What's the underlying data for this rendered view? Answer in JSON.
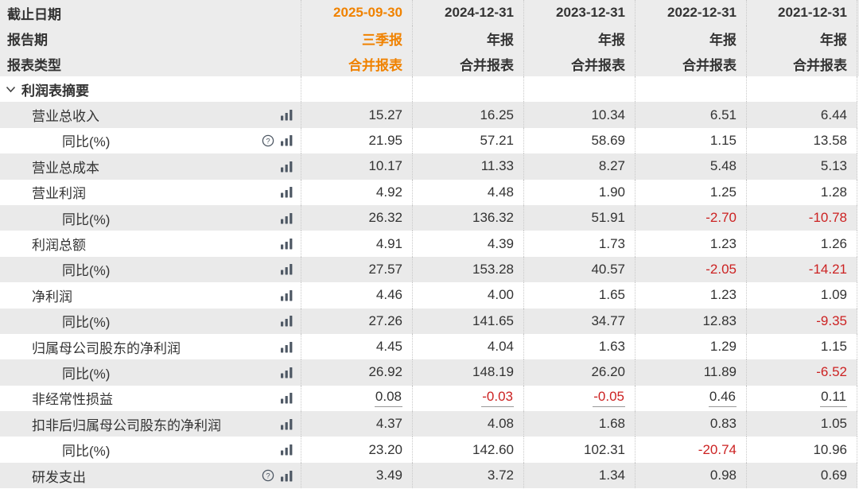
{
  "colors": {
    "accent_orange": "#f08200",
    "negative_red": "#cc2222",
    "shaded_row": "#eaeaea",
    "header_bg": "#ececec",
    "text": "#333333",
    "icon": "#4e5864",
    "underline": "#999999",
    "column_divider": "#c9c9c9"
  },
  "header": {
    "rows": [
      {
        "label": "截止日期",
        "values": [
          "2025-09-30",
          "2024-12-31",
          "2023-12-31",
          "2022-12-31",
          "2021-12-31"
        ]
      },
      {
        "label": "报告期",
        "values": [
          "三季报",
          "年报",
          "年报",
          "年报",
          "年报"
        ]
      },
      {
        "label": "报表类型",
        "values": [
          "合并报表",
          "合并报表",
          "合并报表",
          "合并报表",
          "合并报表"
        ]
      }
    ]
  },
  "section": {
    "title": "利润表摘要",
    "chevron_icon": "chevron-down"
  },
  "table": {
    "rows": [
      {
        "label": "营业总收入",
        "indent": 1,
        "icons": [
          "bar-chart-icon"
        ],
        "values": [
          "15.27",
          "16.25",
          "10.34",
          "6.51",
          "6.44"
        ]
      },
      {
        "label": "同比(%)",
        "indent": 2,
        "icons": [
          "question-icon",
          "bar-chart-icon"
        ],
        "values": [
          "21.95",
          "57.21",
          "58.69",
          "1.15",
          "13.58"
        ]
      },
      {
        "label": "营业总成本",
        "indent": 1,
        "icons": [
          "bar-chart-icon"
        ],
        "values": [
          "10.17",
          "11.33",
          "8.27",
          "5.48",
          "5.13"
        ]
      },
      {
        "label": "营业利润",
        "indent": 1,
        "icons": [
          "bar-chart-icon"
        ],
        "values": [
          "4.92",
          "4.48",
          "1.90",
          "1.25",
          "1.28"
        ]
      },
      {
        "label": "同比(%)",
        "indent": 2,
        "icons": [
          "bar-chart-icon"
        ],
        "values": [
          "26.32",
          "136.32",
          "51.91",
          "-2.70",
          "-10.78"
        ]
      },
      {
        "label": "利润总额",
        "indent": 1,
        "icons": [
          "bar-chart-icon"
        ],
        "values": [
          "4.91",
          "4.39",
          "1.73",
          "1.23",
          "1.26"
        ]
      },
      {
        "label": "同比(%)",
        "indent": 2,
        "icons": [
          "bar-chart-icon"
        ],
        "values": [
          "27.57",
          "153.28",
          "40.57",
          "-2.05",
          "-14.21"
        ]
      },
      {
        "label": "净利润",
        "indent": 1,
        "icons": [
          "bar-chart-icon"
        ],
        "values": [
          "4.46",
          "4.00",
          "1.65",
          "1.23",
          "1.09"
        ]
      },
      {
        "label": "同比(%)",
        "indent": 2,
        "icons": [
          "bar-chart-icon"
        ],
        "values": [
          "27.26",
          "141.65",
          "34.77",
          "12.83",
          "-9.35"
        ]
      },
      {
        "label": "归属母公司股东的净利润",
        "indent": 1,
        "icons": [
          "bar-chart-icon"
        ],
        "values": [
          "4.45",
          "4.04",
          "1.63",
          "1.29",
          "1.15"
        ]
      },
      {
        "label": "同比(%)",
        "indent": 2,
        "icons": [
          "bar-chart-icon"
        ],
        "values": [
          "26.92",
          "148.19",
          "26.20",
          "11.89",
          "-6.52"
        ]
      },
      {
        "label": "非经常性损益",
        "indent": 1,
        "icons": [
          "bar-chart-icon"
        ],
        "underlined": true,
        "values": [
          "0.08",
          "-0.03",
          "-0.05",
          "0.46",
          "0.11"
        ]
      },
      {
        "label": "扣非后归属母公司股东的净利润",
        "indent": 1,
        "icons": [
          "bar-chart-icon"
        ],
        "values": [
          "4.37",
          "4.08",
          "1.68",
          "0.83",
          "1.05"
        ]
      },
      {
        "label": "同比(%)",
        "indent": 2,
        "icons": [
          "bar-chart-icon"
        ],
        "values": [
          "23.20",
          "142.60",
          "102.31",
          "-20.74",
          "10.96"
        ]
      },
      {
        "label": "研发支出",
        "indent": 1,
        "icons": [
          "question-icon",
          "bar-chart-icon"
        ],
        "values": [
          "3.49",
          "3.72",
          "1.34",
          "0.98",
          "0.69"
        ]
      }
    ]
  }
}
